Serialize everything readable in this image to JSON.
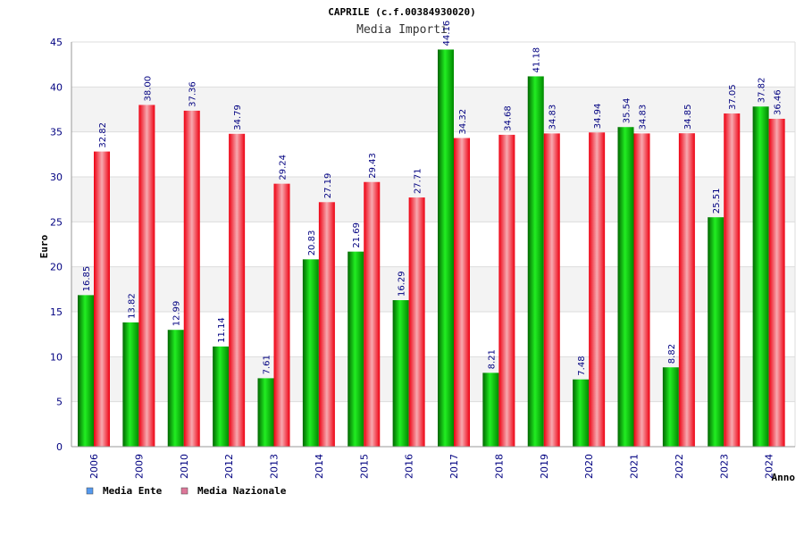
{
  "chart_data": {
    "type": "bar",
    "title": "CAPRILE (c.f.00384930020)",
    "subtitle": "Media Importi",
    "xlabel": "Anno",
    "ylabel": "Euro",
    "ylim": [
      0,
      45
    ],
    "yticks": [
      0,
      5,
      10,
      15,
      20,
      25,
      30,
      35,
      40,
      45
    ],
    "grid": true,
    "legend_position": "bottom-left",
    "categories": [
      "2006",
      "2009",
      "2010",
      "2012",
      "2013",
      "2014",
      "2015",
      "2016",
      "2017",
      "2018",
      "2019",
      "2020",
      "2021",
      "2022",
      "2023",
      "2024"
    ],
    "series": [
      {
        "name": "Media Ente",
        "color": "#00c000",
        "legend_color": "#5599ee",
        "values": [
          16.85,
          13.82,
          12.99,
          11.14,
          7.61,
          20.83,
          21.69,
          16.29,
          44.16,
          8.21,
          41.18,
          7.48,
          35.54,
          8.82,
          25.51,
          37.82
        ],
        "labels": [
          "16.85",
          "13.82",
          "12.99",
          "11.14",
          "7.61",
          "20.83",
          "21.69",
          "16.29",
          "44.16",
          "8.21",
          "41.18",
          "7.48",
          "35.54",
          "8.82",
          "25.51",
          "37.82"
        ]
      },
      {
        "name": "Media Nazionale",
        "color": "#ee2233",
        "legend_color": "#dd7799",
        "values": [
          32.82,
          38.0,
          37.36,
          34.79,
          29.24,
          27.19,
          29.43,
          27.71,
          34.32,
          34.68,
          34.83,
          34.94,
          34.83,
          34.85,
          37.05,
          36.46
        ],
        "labels": [
          "32.82",
          "38.00",
          "37.36",
          "34.79",
          "29.24",
          "27.19",
          "29.43",
          "27.71",
          "34.32",
          "34.68",
          "34.83",
          "34.94",
          "34.83",
          "34.85",
          "37.05",
          "36.46"
        ]
      }
    ]
  }
}
